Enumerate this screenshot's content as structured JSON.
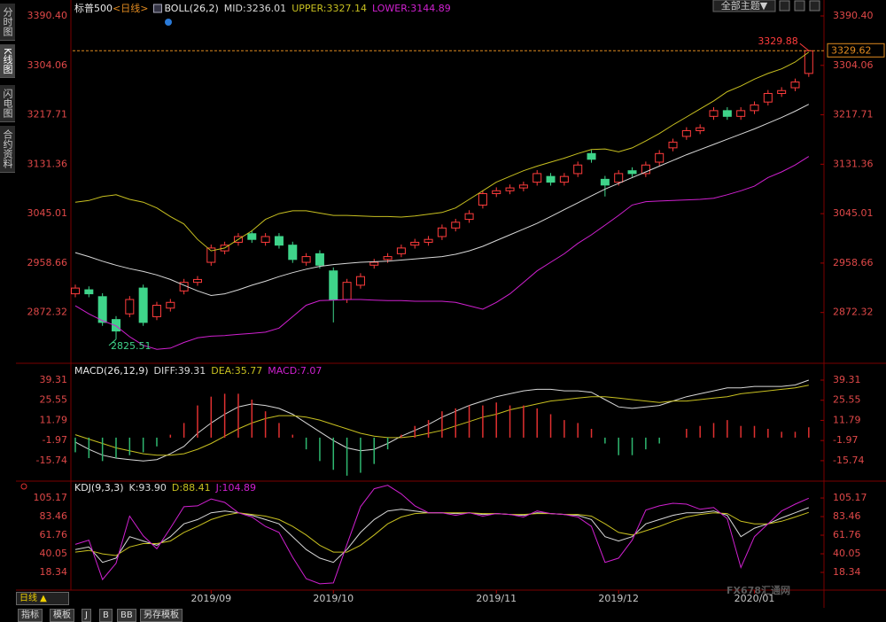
{
  "chart_data": [
    {
      "type": "candlestick",
      "title": "标普500",
      "period": "<日线>",
      "indicator": "BOLL(26,2)",
      "up_color": "#ff3c3c",
      "down_color": "#3fd48a",
      "ylim": [
        2786.7,
        3405.9
      ],
      "yticks": [
        {
          "value": 3390.4,
          "label": "3390.40"
        },
        3304.06,
        3217.71,
        3131.36,
        3045.01,
        2958.66,
        2872.32
      ],
      "open": [
        2905,
        2912,
        2900,
        2860,
        2870,
        2915,
        2865,
        2880,
        2910,
        2925,
        2960,
        2980,
        2995,
        3010,
        2995,
        3005,
        2990,
        2960,
        2975,
        2945,
        2895,
        2920,
        2955,
        2965,
        2975,
        2990,
        2995,
        3005,
        3020,
        3035,
        3060,
        3080,
        3085,
        3090,
        3100,
        3110,
        3100,
        3115,
        3150,
        3105,
        3100,
        3120,
        3115,
        3135,
        3160,
        3180,
        3190,
        3215,
        3225,
        3215,
        3225,
        3240,
        3255,
        3265,
        3290
      ],
      "high": [
        2921,
        2918,
        2906,
        2866,
        2901,
        2921,
        2891,
        2896,
        2931,
        2936,
        2991,
        2996,
        3011,
        3016,
        3011,
        3011,
        2996,
        2976,
        2981,
        2951,
        2931,
        2941,
        2966,
        2976,
        2991,
        3001,
        3006,
        3026,
        3036,
        3051,
        3086,
        3091,
        3096,
        3101,
        3121,
        3116,
        3116,
        3136,
        3156,
        3111,
        3121,
        3126,
        3136,
        3156,
        3176,
        3196,
        3201,
        3231,
        3231,
        3231,
        3241,
        3261,
        3266,
        3281,
        3329.88
      ],
      "low": [
        2899,
        2899,
        2849,
        2825.51,
        2864,
        2849,
        2859,
        2874,
        2904,
        2919,
        2954,
        2974,
        2989,
        2994,
        2989,
        2984,
        2959,
        2954,
        2949,
        2855,
        2889,
        2914,
        2949,
        2959,
        2969,
        2984,
        2989,
        2999,
        3014,
        3029,
        3054,
        3074,
        3079,
        3084,
        3094,
        3094,
        3094,
        3109,
        3134,
        3075,
        3094,
        3109,
        3109,
        3129,
        3154,
        3174,
        3184,
        3209,
        3209,
        3209,
        3219,
        3234,
        3249,
        3259,
        3284
      ],
      "close": [
        2915,
        2905,
        2855,
        2840,
        2895,
        2855,
        2885,
        2890,
        2925,
        2930,
        2985,
        2990,
        3005,
        3000,
        3005,
        2990,
        2965,
        2970,
        2955,
        2895,
        2925,
        2935,
        2960,
        2970,
        2985,
        2995,
        3000,
        3020,
        3030,
        3045,
        3080,
        3085,
        3090,
        3095,
        3115,
        3100,
        3110,
        3130,
        3140,
        3095,
        3115,
        3115,
        3130,
        3150,
        3170,
        3190,
        3195,
        3225,
        3215,
        3225,
        3235,
        3255,
        3260,
        3275,
        3329.62
      ],
      "series": [
        {
          "name": "MID:3236.01",
          "color": "#d8d8d8",
          "values": [
            2977,
            2970,
            2962,
            2955,
            2949,
            2944,
            2938,
            2930,
            2920,
            2910,
            2902,
            2905,
            2912,
            2920,
            2927,
            2935,
            2942,
            2948,
            2953,
            2956,
            2958,
            2960,
            2961,
            2962,
            2964,
            2966,
            2968,
            2970,
            2974,
            2980,
            2988,
            2998,
            3008,
            3018,
            3028,
            3040,
            3052,
            3064,
            3076,
            3088,
            3098,
            3108,
            3118,
            3128,
            3138,
            3148,
            3157,
            3166,
            3175,
            3184,
            3193,
            3203,
            3213,
            3224,
            3236.01
          ]
        },
        {
          "name": "UPPER:3327.14",
          "color": "#c8c020",
          "values": [
            3065,
            3068,
            3075,
            3078,
            3070,
            3065,
            3055,
            3040,
            3027,
            3000,
            2980,
            2985,
            3000,
            3015,
            3035,
            3045,
            3050,
            3050,
            3046,
            3042,
            3042,
            3041,
            3040,
            3040,
            3039,
            3041,
            3044,
            3047,
            3055,
            3070,
            3085,
            3100,
            3110,
            3120,
            3128,
            3135,
            3142,
            3150,
            3157,
            3158,
            3153,
            3160,
            3172,
            3185,
            3200,
            3214,
            3228,
            3242,
            3258,
            3268,
            3280,
            3290,
            3298,
            3310,
            3327.14
          ]
        },
        {
          "name": "LOWER:3144.89",
          "color": "#d020d0",
          "values": [
            2884,
            2870,
            2858,
            2849,
            2830,
            2815,
            2808,
            2810,
            2820,
            2828,
            2831,
            2832,
            2834,
            2836,
            2838,
            2845,
            2865,
            2885,
            2893,
            2894,
            2895,
            2895,
            2894,
            2893,
            2893,
            2892,
            2892,
            2892,
            2890,
            2884,
            2878,
            2890,
            2905,
            2925,
            2945,
            2960,
            2975,
            2993,
            3008,
            3025,
            3042,
            3060,
            3066,
            3067,
            3068,
            3069,
            3070,
            3072,
            3078,
            3085,
            3093,
            3108,
            3118,
            3130,
            3144.89
          ]
        }
      ]
    },
    {
      "type": "line",
      "title": "MACD(26,12,9)",
      "up_color": "#e03030",
      "down_color": "#2fb870",
      "ylim": [
        -27.9,
        49.6
      ],
      "yticks": [
        39.31,
        25.55,
        11.79,
        -1.97,
        -15.74
      ],
      "series": [
        {
          "name": "DIFF:39.31",
          "color": "#d8d8d8",
          "values": [
            -3,
            -8,
            -12,
            -14,
            -15,
            -16,
            -15,
            -11,
            -6,
            3,
            10,
            16,
            21,
            23,
            22,
            20,
            16,
            10,
            4,
            -2,
            -7,
            -9,
            -8,
            -4,
            1,
            5,
            9,
            14,
            18,
            22,
            25,
            28,
            30,
            32,
            33,
            33,
            32,
            32,
            31,
            26,
            21,
            20,
            21,
            22,
            25,
            28,
            30,
            32,
            34,
            34,
            35,
            35,
            35,
            36,
            39.31
          ]
        },
        {
          "name": "DEA:35.77",
          "color": "#c8c020",
          "values": [
            2,
            -1,
            -4,
            -7,
            -9,
            -11,
            -12,
            -12,
            -11,
            -8,
            -4,
            1,
            6,
            10,
            13,
            15,
            15,
            14,
            12,
            9,
            6,
            3,
            1,
            0,
            0,
            1,
            3,
            5,
            8,
            11,
            14,
            16,
            19,
            21,
            23,
            25,
            26,
            27,
            28,
            28,
            27,
            26,
            25,
            24,
            25,
            25,
            26,
            27,
            28,
            30,
            31,
            32,
            33,
            34,
            35.77
          ]
        },
        {
          "name": "MACD:7.07",
          "type": "bar",
          "color": "#d020d0",
          "values": [
            -10,
            -14,
            -16,
            -14,
            -12,
            -10,
            -6,
            2,
            10,
            22,
            28,
            30,
            30,
            26,
            18,
            10,
            2,
            -8,
            -16,
            -22,
            -26,
            -24,
            -18,
            -8,
            2,
            8,
            12,
            18,
            20,
            22,
            22,
            24,
            22,
            22,
            20,
            16,
            12,
            10,
            6,
            -4,
            -12,
            -12,
            -8,
            -4,
            0,
            6,
            8,
            10,
            12,
            8,
            8,
            6,
            4,
            4,
            7.07
          ]
        }
      ]
    },
    {
      "type": "line",
      "title": "KDJ(9,3,3)",
      "ylim": [
        -1.3,
        122.8
      ],
      "yticks": [
        105.17,
        83.46,
        61.76,
        40.05,
        18.34
      ],
      "categories": [
        null,
        null,
        null,
        null,
        null,
        null,
        null,
        null,
        null,
        null,
        "2019/09",
        null,
        null,
        null,
        null,
        null,
        null,
        null,
        null,
        "2019/10",
        null,
        null,
        null,
        null,
        null,
        null,
        null,
        null,
        null,
        null,
        null,
        "2019/11",
        null,
        null,
        null,
        null,
        null,
        null,
        null,
        null,
        "2019/12",
        null,
        null,
        null,
        null,
        null,
        null,
        null,
        null,
        null,
        "2020/01",
        null,
        null,
        null,
        null
      ],
      "series": [
        {
          "name": "K:93.90",
          "color": "#d8d8d8",
          "values": [
            45,
            48,
            30,
            35,
            60,
            55,
            50,
            60,
            75,
            80,
            88,
            90,
            88,
            85,
            80,
            75,
            60,
            45,
            35,
            30,
            45,
            65,
            80,
            90,
            92,
            90,
            88,
            88,
            87,
            88,
            86,
            87,
            86,
            85,
            88,
            87,
            86,
            85,
            80,
            60,
            55,
            60,
            75,
            80,
            85,
            88,
            88,
            90,
            85,
            60,
            70,
            75,
            82,
            88,
            93.9
          ]
        },
        {
          "name": "D:88.41",
          "color": "#c8c020",
          "values": [
            42,
            44,
            40,
            38,
            48,
            52,
            52,
            55,
            65,
            72,
            80,
            85,
            88,
            86,
            84,
            80,
            72,
            62,
            50,
            42,
            42,
            50,
            62,
            75,
            83,
            87,
            88,
            88,
            88,
            88,
            87,
            87,
            86,
            86,
            87,
            87,
            86,
            86,
            84,
            75,
            65,
            62,
            67,
            72,
            78,
            83,
            86,
            88,
            87,
            78,
            75,
            75,
            78,
            83,
            88.41
          ]
        },
        {
          "name": "J:104.89",
          "color": "#d020d0",
          "values": [
            51,
            56,
            10,
            29,
            84,
            61,
            46,
            70,
            95,
            96,
            104,
            100,
            88,
            83,
            72,
            65,
            36,
            11,
            5,
            6,
            51,
            95,
            116,
            120,
            110,
            96,
            88,
            88,
            85,
            88,
            84,
            87,
            86,
            83,
            90,
            87,
            86,
            83,
            72,
            30,
            35,
            56,
            91,
            96,
            99,
            98,
            92,
            94,
            81,
            24,
            60,
            75,
            90,
            98,
            104.89
          ]
        }
      ]
    }
  ],
  "ui": {
    "sidebar": [
      "分时图",
      "K线图",
      "闪电图",
      "合约资料"
    ],
    "theme": "全部主题▼",
    "period_button": "日线 ▲",
    "tabs": [
      "指标",
      "模板",
      "J",
      "B",
      "BB",
      "另存模板"
    ],
    "watermark": "FX678汇通网"
  }
}
